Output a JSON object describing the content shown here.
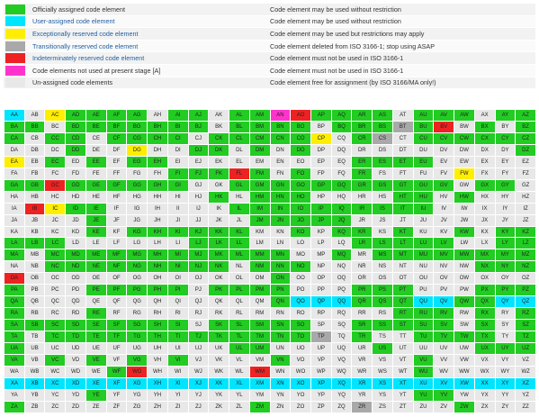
{
  "legend": [
    {
      "label": "Officially assigned code element",
      "desc": "Code element may be used without restriction",
      "color": "#22cc22",
      "link": false
    },
    {
      "label": "User-assigned code element",
      "desc": "Code element may be used without restriction",
      "color": "#00e5ff",
      "link": true
    },
    {
      "label": "Exceptionally reserved code element",
      "desc": "Code element may be used but restrictions may apply",
      "color": "#ffee00",
      "link": true
    },
    {
      "label": "Transitionally reserved code element",
      "desc": "Code element deleted from ISO 3166-1; stop using ASAP",
      "color": "#a9a9a9",
      "link": true
    },
    {
      "label": "Indeterminately reserved code element",
      "desc": "Code element must not be used in ISO 3166-1",
      "color": "#ee2222",
      "link": true
    },
    {
      "label": "Code elements not used at present stage [A]",
      "desc": "Code element must not be used in ISO 3166-1",
      "color": "#ff33cc",
      "link": false
    },
    {
      "label": "Un-assigned code elements",
      "desc": "Code element free for assignment (by ISO 3166/MA only!)",
      "color": "#e8e8e8",
      "link": false
    }
  ],
  "status_colors": {
    "O": "#22cc22",
    "U": "#00e5ff",
    "E": "#ffee00",
    "T": "#a9a9a9",
    "I": "#ee2222",
    "N": "#ff33cc",
    "X": "#e8e8e8"
  },
  "letters": "ABCDEFGHIJKLMNOPQRSTUVWXYZ",
  "grid_status": [
    "UXEOOOOXOOXOONIOOOOXOOOXOO",
    "OOXOOOOOOOXOOOOXOOOTOIXOXO",
    "OXOOXOOOOXOOOOOEXOTXOOOOOO",
    "XXXOXXEXXOOXOXOXXXXXXXXXXO",
    "EXOXOXOOXXXXXXXXXOOOOXXXXX",
    "XXXXXXXXOOOIOXOXXOXXXXEXXX",
    "OOIOOOOOOXXOOOOOOOOOOOXOOX",
    "XXXXXXXXXXOXOOOXXXXOOXOXXX",
    "XIEOOXXXXXXOOOOOOOOOOXXXXX",
    "XXXXOXXXXXXXOOOOOXXXXXXXXX",
    "XXXXOXOOOOOOXXOXOOXOXXOXOO",
    "OOOXXXXXXOOOXXXXXOOOOOXXOO",
    "OXOOOOOOOOOOOOXXOXOOOOOOOO",
    "XXOOOOOOOOOXOOOXXXXXXXXOOO",
    "IXXXXXXXXXXXXOXXXXXXXXXXXX",
    "OXXXOOOOOXOOOOXXXOOOXXXOOO",
    "OXXXXXXXXXXXXOUUUOOOUUOOUU",
    "OXXXOXXXXXXXXXXXXXXOOOXOXO",
    "OOOOOOOOOXOOOOOXXOOOOOXOXO",
    "OXOOOOOOOOOOOOOTXOXXOOOOXO",
    "OXXXXXXXXXXOOXXXXXOXXXXOOO",
    "OXOXOXOXOXXXXOXXXXXXOXXXXX",
    "XXXXXOIXXXXXIXXXXXXXOXXXXX",
    "UUUUUUUUUUUUUUUUUUUUUUUUUU",
    "XXXXOXXXXXXXXXXXXXXXOOXXXX",
    "OXXXXXXXXXXXOXXXXTXXXXOXXX"
  ]
}
